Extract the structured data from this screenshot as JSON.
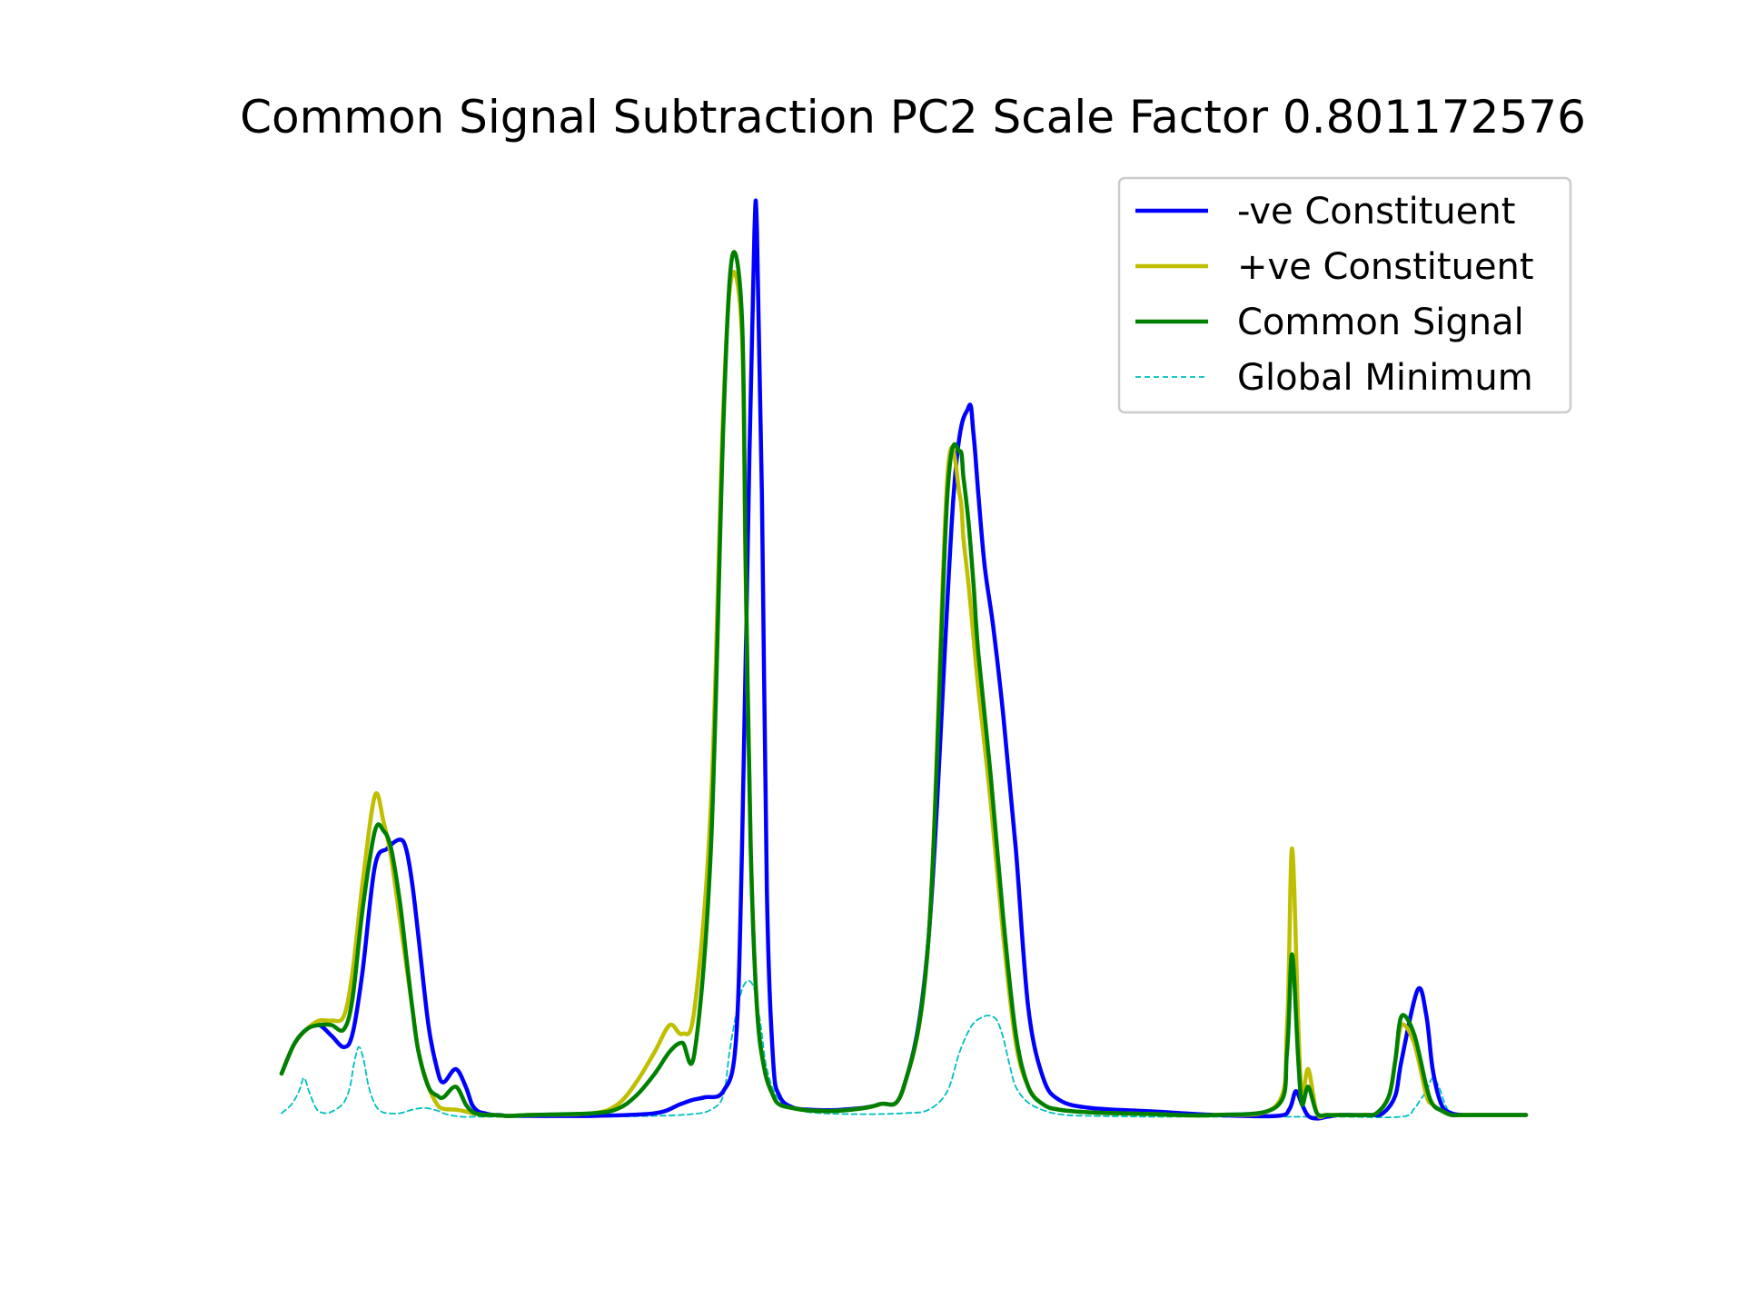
{
  "chart_data": {
    "type": "line",
    "title": "Common Signal Subtraction PC2 Scale Factor 0.801172576",
    "xlabel": "",
    "ylabel": "",
    "xlim": [
      0,
      1000
    ],
    "ylim": [
      -0.02,
      1.03
    ],
    "grid": false,
    "axes_visible": false,
    "legend_position": "top-right",
    "series": [
      {
        "name": "-ve Constituent",
        "color": "#0000ff",
        "line_style": "solid",
        "line_width": 4.5,
        "x": [
          0,
          10,
          20,
          30,
          40,
          50,
          57,
          65,
          75,
          85,
          95,
          100,
          105,
          110,
          118,
          125,
          130,
          140,
          148,
          153,
          158,
          163,
          170,
          175,
          180,
          185,
          200,
          250,
          300,
          320,
          330,
          340,
          355,
          365,
          370,
          376,
          380,
          382,
          386,
          390,
          395,
          400,
          410,
          425,
          450,
          480,
          500,
          520,
          540,
          552,
          556,
          560,
          565,
          572,
          580,
          590,
          600,
          612,
          625,
          650,
          700,
          750,
          800,
          810,
          815,
          820,
          825,
          832,
          840,
          850,
          860,
          875,
          885,
          895,
          900,
          913,
          920,
          925,
          932,
          940,
          950,
          960,
          970,
          980,
          1000
        ],
        "y": [
          0.045,
          0.078,
          0.095,
          0.1,
          0.088,
          0.075,
          0.09,
          0.16,
          0.28,
          0.3,
          0.31,
          0.3,
          0.26,
          0.2,
          0.1,
          0.05,
          0.035,
          0.05,
          0.03,
          0.01,
          0.002,
          0.0,
          -0.002,
          -0.002,
          -0.003,
          -0.003,
          -0.003,
          -0.003,
          0.0,
          0.01,
          0.015,
          0.018,
          0.025,
          0.08,
          0.3,
          0.75,
          1.0,
          1.0,
          0.7,
          0.25,
          0.06,
          0.02,
          0.007,
          0.004,
          0.004,
          0.01,
          0.03,
          0.2,
          0.7,
          0.8,
          0.77,
          0.7,
          0.62,
          0.55,
          0.45,
          0.3,
          0.12,
          0.04,
          0.015,
          0.006,
          0.002,
          -0.002,
          -0.003,
          0.005,
          0.025,
          0.01,
          -0.003,
          -0.006,
          -0.004,
          -0.002,
          -0.002,
          -0.002,
          0.0,
          0.02,
          0.06,
          0.14,
          0.11,
          0.05,
          0.01,
          0.0,
          -0.002,
          -0.002,
          -0.002,
          -0.002,
          -0.002
        ]
      },
      {
        "name": "+ve Constituent",
        "color": "#bfbf00",
        "line_style": "solid",
        "line_width": 4.5,
        "x": [
          0,
          10,
          20,
          30,
          40,
          50,
          57,
          65,
          75,
          82,
          88,
          95,
          100,
          105,
          110,
          118,
          125,
          130,
          140,
          148,
          153,
          158,
          163,
          170,
          180,
          185,
          200,
          250,
          270,
          285,
          300,
          312,
          322,
          332,
          345,
          355,
          362,
          370,
          373,
          377,
          382,
          388,
          395,
          400,
          410,
          425,
          450,
          480,
          500,
          520,
          535,
          545,
          548,
          552,
          556,
          560,
          570,
          580,
          590,
          600,
          612,
          625,
          650,
          700,
          750,
          800,
          808,
          812,
          817,
          820,
          825,
          832,
          840,
          850,
          870,
          880,
          890,
          895,
          900,
          910,
          920,
          925,
          932,
          940,
          950,
          1000
        ],
        "y": [
          0.045,
          0.078,
          0.095,
          0.105,
          0.105,
          0.11,
          0.16,
          0.26,
          0.36,
          0.33,
          0.29,
          0.22,
          0.17,
          0.12,
          0.07,
          0.03,
          0.01,
          0.005,
          0.004,
          0.002,
          0.0,
          -0.001,
          -0.002,
          -0.002,
          -0.003,
          -0.003,
          -0.002,
          0.0,
          0.01,
          0.035,
          0.07,
          0.1,
          0.09,
          0.12,
          0.35,
          0.8,
          0.95,
          0.88,
          0.6,
          0.3,
          0.12,
          0.05,
          0.02,
          0.01,
          0.006,
          0.003,
          0.003,
          0.01,
          0.03,
          0.2,
          0.72,
          0.7,
          0.65,
          0.6,
          0.54,
          0.48,
          0.35,
          0.2,
          0.08,
          0.03,
          0.01,
          0.004,
          0.001,
          -0.001,
          -0.002,
          0.01,
          0.1,
          0.3,
          0.1,
          0.02,
          0.05,
          0.0,
          -0.002,
          -0.002,
          -0.002,
          0.0,
          0.02,
          0.06,
          0.1,
          0.08,
          0.02,
          0.01,
          0.003,
          -0.002,
          -0.002,
          -0.002
        ]
      },
      {
        "name": "Common Signal",
        "color": "#008000",
        "line_style": "solid",
        "line_width": 4.5,
        "x": [
          0,
          10,
          20,
          30,
          40,
          50,
          57,
          65,
          75,
          82,
          88,
          95,
          100,
          105,
          110,
          118,
          125,
          130,
          140,
          148,
          153,
          158,
          163,
          170,
          180,
          185,
          200,
          250,
          270,
          285,
          300,
          312,
          322,
          332,
          345,
          355,
          362,
          370,
          373,
          377,
          382,
          388,
          395,
          400,
          410,
          425,
          450,
          480,
          500,
          520,
          535,
          545,
          548,
          552,
          556,
          560,
          570,
          580,
          590,
          600,
          612,
          625,
          650,
          700,
          750,
          800,
          808,
          812,
          817,
          820,
          825,
          832,
          840,
          850,
          870,
          880,
          890,
          895,
          900,
          910,
          920,
          925,
          932,
          940,
          950,
          1000
        ],
        "y": [
          0.045,
          0.078,
          0.095,
          0.1,
          0.1,
          0.095,
          0.13,
          0.23,
          0.32,
          0.32,
          0.3,
          0.24,
          0.18,
          0.12,
          0.07,
          0.03,
          0.02,
          0.018,
          0.03,
          0.01,
          0.002,
          -0.001,
          -0.002,
          -0.002,
          -0.003,
          -0.003,
          -0.002,
          0.0,
          0.005,
          0.02,
          0.045,
          0.07,
          0.08,
          0.07,
          0.3,
          0.78,
          0.97,
          0.9,
          0.62,
          0.3,
          0.12,
          0.05,
          0.02,
          0.01,
          0.006,
          0.003,
          0.003,
          0.01,
          0.03,
          0.2,
          0.7,
          0.75,
          0.72,
          0.67,
          0.6,
          0.52,
          0.38,
          0.22,
          0.09,
          0.03,
          0.01,
          0.004,
          0.001,
          -0.001,
          -0.002,
          0.008,
          0.07,
          0.18,
          0.06,
          0.01,
          0.03,
          0.0,
          -0.002,
          -0.002,
          -0.002,
          0.0,
          0.02,
          0.06,
          0.11,
          0.09,
          0.03,
          0.01,
          0.003,
          -0.002,
          -0.002,
          -0.002
        ]
      },
      {
        "name": "Global Minimum",
        "color": "#00bfbf",
        "line_style": "dashed",
        "line_width": 1.8,
        "x": [
          0,
          8,
          14,
          18,
          22,
          28,
          35,
          42,
          50,
          55,
          58,
          62,
          66,
          70,
          75,
          80,
          85,
          95,
          105,
          115,
          125,
          130,
          135,
          145,
          155,
          165,
          180,
          200,
          250,
          300,
          330,
          345,
          355,
          360,
          365,
          370,
          375,
          380,
          385,
          390,
          400,
          420,
          460,
          500,
          520,
          535,
          545,
          555,
          565,
          570,
          575,
          580,
          585,
          590,
          600,
          615,
          630,
          650,
          700,
          750,
          800,
          850,
          900,
          910,
          915,
          920,
          925,
          930,
          935,
          940,
          950,
          1000
        ],
        "y": [
          0.0,
          0.01,
          0.025,
          0.04,
          0.025,
          0.005,
          0.0,
          0.003,
          0.012,
          0.03,
          0.055,
          0.075,
          0.06,
          0.03,
          0.01,
          0.002,
          0.0,
          0.0,
          0.004,
          0.006,
          0.003,
          0.0,
          -0.002,
          -0.004,
          -0.004,
          -0.004,
          -0.004,
          -0.004,
          -0.004,
          -0.003,
          -0.001,
          0.004,
          0.02,
          0.07,
          0.11,
          0.14,
          0.15,
          0.14,
          0.1,
          0.05,
          0.015,
          0.002,
          -0.001,
          0.0,
          0.004,
          0.025,
          0.07,
          0.1,
          0.11,
          0.11,
          0.105,
          0.085,
          0.055,
          0.03,
          0.012,
          0.002,
          -0.002,
          -0.003,
          -0.004,
          -0.004,
          -0.004,
          -0.004,
          -0.004,
          0.005,
          0.015,
          0.025,
          0.04,
          0.03,
          0.01,
          0.0,
          -0.002,
          -0.003
        ]
      }
    ]
  }
}
